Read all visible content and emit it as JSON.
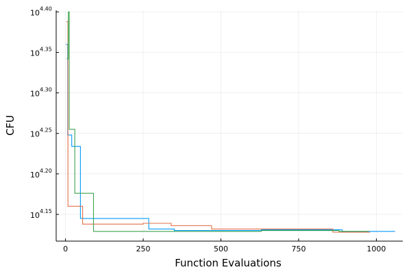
{
  "chart_data": {
    "type": "line",
    "step": true,
    "xlabel": "Function Evaluations",
    "ylabel": "CFU",
    "xlim": [
      -30,
      1085
    ],
    "ylim_log10": [
      4.117,
      4.402
    ],
    "y_scale": "log10",
    "grid": true,
    "legend": "none",
    "x_ticks": [
      {
        "value": 0,
        "label": "0"
      },
      {
        "value": 250,
        "label": "250"
      },
      {
        "value": 500,
        "label": "500"
      },
      {
        "value": 750,
        "label": "750"
      },
      {
        "value": 1000,
        "label": "1000"
      }
    ],
    "y_ticks": [
      {
        "value": 4.15,
        "base": "10",
        "exp": "4.15"
      },
      {
        "value": 4.2,
        "base": "10",
        "exp": "4.20"
      },
      {
        "value": 4.25,
        "base": "10",
        "exp": "4.25"
      },
      {
        "value": 4.3,
        "base": "10",
        "exp": "4.30"
      },
      {
        "value": 4.35,
        "base": "10",
        "exp": "4.35"
      },
      {
        "value": 4.4,
        "base": "10",
        "exp": "4.40"
      }
    ],
    "series": [
      {
        "color": "#009AFA",
        "points": [
          [
            2,
            4.36
          ],
          [
            7,
            4.248
          ],
          [
            20,
            4.234
          ],
          [
            48,
            4.145
          ],
          [
            268,
            4.132
          ],
          [
            350,
            4.13
          ],
          [
            470,
            4.13
          ],
          [
            630,
            4.131
          ],
          [
            890,
            4.129
          ],
          [
            1060,
            4.129
          ]
        ]
      },
      {
        "color": "#E26F46",
        "points": [
          [
            3,
            4.388
          ],
          [
            8,
            4.16
          ],
          [
            55,
            4.138
          ],
          [
            250,
            4.139
          ],
          [
            340,
            4.136
          ],
          [
            470,
            4.132
          ],
          [
            860,
            4.128
          ],
          [
            980,
            4.128
          ]
        ]
      },
      {
        "color": "#3DA44D",
        "points": [
          [
            4,
            4.342
          ],
          [
            9,
            4.4
          ],
          [
            12,
            4.255
          ],
          [
            30,
            4.176
          ],
          [
            90,
            4.129
          ],
          [
            630,
            4.13
          ],
          [
            880,
            4.129
          ],
          [
            975,
            4.129
          ]
        ]
      }
    ]
  }
}
